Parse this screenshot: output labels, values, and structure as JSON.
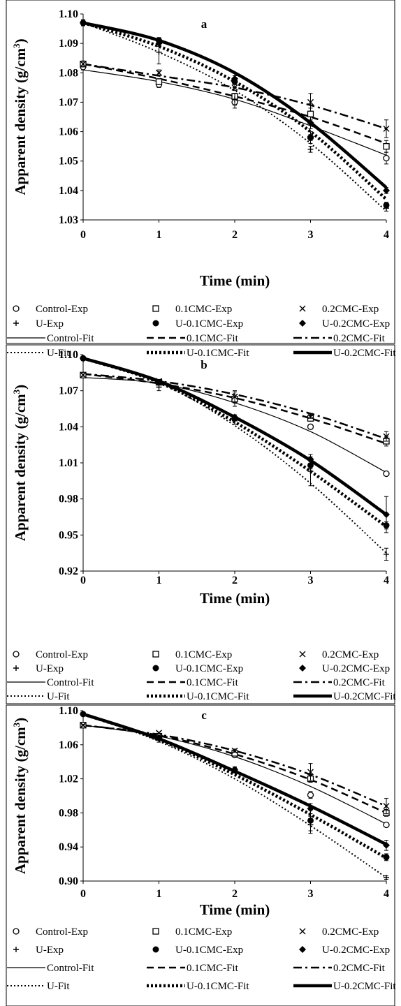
{
  "chart_data": [
    {
      "type": "line",
      "panel_label": "a",
      "xlabel": "Time (min)",
      "ylabel": "Apparent density (g/cm",
      "ylabel_sup": "3",
      "ylabel_close": ")",
      "xlim": [
        0,
        4
      ],
      "ylim": [
        1.03,
        1.1
      ],
      "x_ticks": [
        0,
        1,
        2,
        3,
        4
      ],
      "y_ticks": [
        1.03,
        1.04,
        1.05,
        1.06,
        1.07,
        1.08,
        1.09,
        1.1
      ],
      "y_tick_labels": [
        "1.03",
        "1.04",
        "1.05",
        "1.06",
        "1.07",
        "1.08",
        "1.09",
        "1.10"
      ],
      "grid": false,
      "legend_position": "bottom",
      "series": [
        {
          "name": "Control-Exp",
          "kind": "exp",
          "marker": "circle-open",
          "x": [
            0,
            1,
            2,
            3,
            4
          ],
          "values": [
            1.082,
            1.076,
            1.07,
            1.058,
            1.051
          ],
          "err": [
            0.001,
            0.001,
            0.002,
            0.002,
            0.002
          ]
        },
        {
          "name": "0.1CMC-Exp",
          "kind": "exp",
          "marker": "square-open",
          "x": [
            0,
            1,
            2,
            3,
            4
          ],
          "values": [
            1.083,
            1.077,
            1.072,
            1.066,
            1.055
          ],
          "err": [
            0.001,
            0.001,
            0.001,
            0.002,
            0.002
          ]
        },
        {
          "name": "0.2CMC-Exp",
          "kind": "exp",
          "marker": "x",
          "x": [
            0,
            1,
            2,
            3,
            4
          ],
          "values": [
            1.083,
            1.08,
            1.075,
            1.07,
            1.061
          ],
          "err": [
            0.001,
            0.001,
            0.001,
            0.003,
            0.003
          ]
        },
        {
          "name": "U-Exp",
          "kind": "exp",
          "marker": "plus",
          "x": [
            0,
            1,
            2,
            3,
            4
          ],
          "values": [
            1.097,
            1.087,
            1.071,
            1.054,
            1.034
          ],
          "err": [
            0.001,
            0.004,
            0.002,
            0.001,
            0.001
          ]
        },
        {
          "name": "U-0.1CMC-Exp",
          "kind": "exp",
          "marker": "circle-filled",
          "x": [
            0,
            1,
            2,
            3,
            4
          ],
          "values": [
            1.097,
            1.091,
            1.077,
            1.058,
            1.035
          ],
          "err": [
            0.001,
            0.001,
            0.002,
            0.001,
            0.001
          ]
        },
        {
          "name": "U-0.2CMC-Exp",
          "kind": "exp",
          "marker": "diamond-filled",
          "x": [
            0,
            1,
            2,
            3,
            4
          ],
          "values": [
            1.097,
            1.09,
            1.078,
            1.063,
            1.04
          ],
          "err": [
            0.001,
            0.001,
            0.002,
            0.002,
            0.001
          ]
        },
        {
          "name": "Control-Fit",
          "kind": "fit",
          "dash": "solid-thin",
          "x": [
            0,
            1,
            2,
            3,
            4
          ],
          "values": [
            1.081,
            1.077,
            1.071,
            1.062,
            1.052
          ]
        },
        {
          "name": "0.1CMC-Fit",
          "kind": "fit",
          "dash": "dashed",
          "x": [
            0,
            1,
            2,
            3,
            4
          ],
          "values": [
            1.083,
            1.078,
            1.072,
            1.065,
            1.056
          ]
        },
        {
          "name": "0.2CMC-Fit",
          "kind": "fit",
          "dash": "dash-dot",
          "x": [
            0,
            1,
            2,
            3,
            4
          ],
          "values": [
            1.083,
            1.079,
            1.075,
            1.069,
            1.061
          ]
        },
        {
          "name": "U-Fit",
          "kind": "fit",
          "dash": "dotted-thin",
          "x": [
            0,
            1,
            2,
            3,
            4
          ],
          "values": [
            1.097,
            1.087,
            1.074,
            1.056,
            1.033
          ]
        },
        {
          "name": "U-0.1CMC-Fit",
          "kind": "fit",
          "dash": "dotted-thick",
          "x": [
            0,
            1,
            2,
            3,
            4
          ],
          "values": [
            1.097,
            1.089,
            1.077,
            1.06,
            1.037
          ]
        },
        {
          "name": "U-0.2CMC-Fit",
          "kind": "fit",
          "dash": "solid-thick",
          "x": [
            0,
            1,
            2,
            3,
            4
          ],
          "values": [
            1.097,
            1.091,
            1.08,
            1.063,
            1.041
          ]
        }
      ]
    },
    {
      "type": "line",
      "panel_label": "b",
      "xlabel": "Time (min)",
      "ylabel": "Apparent density (g/cm",
      "ylabel_sup": "3",
      "ylabel_close": ")",
      "xlim": [
        0,
        4
      ],
      "ylim": [
        0.92,
        1.1
      ],
      "x_ticks": [
        0,
        1,
        2,
        3,
        4
      ],
      "y_ticks": [
        0.92,
        0.95,
        0.98,
        1.01,
        1.04,
        1.07,
        1.1
      ],
      "y_tick_labels": [
        "0.92",
        "0.95",
        "0.98",
        "1.01",
        "1.04",
        "1.07",
        "1.10"
      ],
      "grid": false,
      "legend_position": "bottom",
      "series": [
        {
          "name": "Control-Exp",
          "kind": "exp",
          "marker": "circle-open",
          "x": [
            0,
            1,
            2,
            3,
            4
          ],
          "values": [
            1.083,
            1.077,
            1.062,
            1.04,
            1.001
          ],
          "err": [
            0.001,
            0.001,
            0.002,
            0.002,
            0.001
          ]
        },
        {
          "name": "0.1CMC-Exp",
          "kind": "exp",
          "marker": "square-open",
          "x": [
            0,
            1,
            2,
            3,
            4
          ],
          "values": [
            1.083,
            1.077,
            1.063,
            1.047,
            1.028
          ],
          "err": [
            0.002,
            0.001,
            0.006,
            0.002,
            0.004
          ]
        },
        {
          "name": "0.2CMC-Exp",
          "kind": "exp",
          "marker": "x",
          "x": [
            0,
            1,
            2,
            3,
            4
          ],
          "values": [
            1.083,
            1.078,
            1.065,
            1.049,
            1.032
          ],
          "err": [
            0.001,
            0.001,
            0.005,
            0.002,
            0.004
          ]
        },
        {
          "name": "U-Exp",
          "kind": "exp",
          "marker": "plus",
          "x": [
            0,
            1,
            2,
            3,
            4
          ],
          "values": [
            1.096,
            1.073,
            1.045,
            1.003,
            0.934
          ],
          "err": [
            0.001,
            0.003,
            0.003,
            0.012,
            0.005
          ]
        },
        {
          "name": "U-0.1CMC-Exp",
          "kind": "exp",
          "marker": "circle-filled",
          "x": [
            0,
            1,
            2,
            3,
            4
          ],
          "values": [
            1.097,
            1.077,
            1.047,
            1.008,
            0.958
          ],
          "err": [
            0.001,
            0.001,
            0.002,
            0.003,
            0.003
          ]
        },
        {
          "name": "U-0.2CMC-Exp",
          "kind": "exp",
          "marker": "diamond-filled",
          "x": [
            0,
            1,
            2,
            3,
            4
          ],
          "values": [
            1.097,
            1.077,
            1.048,
            1.013,
            0.967
          ],
          "err": [
            0.001,
            0.001,
            0.002,
            0.004,
            0.015
          ]
        },
        {
          "name": "Control-Fit",
          "kind": "fit",
          "dash": "solid-thin",
          "x": [
            0,
            1,
            2,
            3,
            4
          ],
          "values": [
            1.081,
            1.076,
            1.06,
            1.036,
            1.002
          ]
        },
        {
          "name": "0.1CMC-Fit",
          "kind": "fit",
          "dash": "dashed",
          "x": [
            0,
            1,
            2,
            3,
            4
          ],
          "values": [
            1.084,
            1.076,
            1.064,
            1.047,
            1.026
          ]
        },
        {
          "name": "0.2CMC-Fit",
          "kind": "fit",
          "dash": "dash-dot",
          "x": [
            0,
            1,
            2,
            3,
            4
          ],
          "values": [
            1.084,
            1.078,
            1.067,
            1.051,
            1.03
          ]
        },
        {
          "name": "U-Fit",
          "kind": "fit",
          "dash": "dotted-thin",
          "x": [
            0,
            1,
            2,
            3,
            4
          ],
          "values": [
            1.097,
            1.077,
            1.041,
            0.993,
            0.935
          ]
        },
        {
          "name": "U-0.1CMC-Fit",
          "kind": "fit",
          "dash": "dotted-thick",
          "x": [
            0,
            1,
            2,
            3,
            4
          ],
          "values": [
            1.097,
            1.077,
            1.044,
            1.003,
            0.957
          ]
        },
        {
          "name": "U-0.2CMC-Fit",
          "kind": "fit",
          "dash": "solid-thick",
          "x": [
            0,
            1,
            2,
            3,
            4
          ],
          "values": [
            1.097,
            1.078,
            1.048,
            1.012,
            0.967
          ]
        }
      ]
    },
    {
      "type": "line",
      "panel_label": "c",
      "xlabel": "Time (min)",
      "ylabel": "Apparent density (g/cm",
      "ylabel_sup": "3",
      "ylabel_close": ")",
      "xlim": [
        0,
        4
      ],
      "ylim": [
        0.9,
        1.1
      ],
      "x_ticks": [
        0,
        1,
        2,
        3,
        4
      ],
      "y_ticks": [
        0.9,
        0.94,
        0.98,
        1.02,
        1.06,
        1.1
      ],
      "y_tick_labels": [
        "0.90",
        "0.94",
        "0.98",
        "1.02",
        "1.06",
        "1.10"
      ],
      "grid": false,
      "legend_position": "bottom",
      "series": [
        {
          "name": "Control-Exp",
          "kind": "exp",
          "marker": "circle-open",
          "x": [
            0,
            1,
            2,
            3,
            4
          ],
          "values": [
            1.083,
            1.07,
            1.048,
            1.001,
            0.966
          ],
          "err": [
            0.001,
            0.001,
            0.002,
            0.004,
            0.002
          ]
        },
        {
          "name": "0.1CMC-Exp",
          "kind": "exp",
          "marker": "square-open",
          "x": [
            0,
            1,
            2,
            3,
            4
          ],
          "values": [
            1.083,
            1.07,
            1.05,
            1.02,
            0.98
          ],
          "err": [
            0.001,
            0.001,
            0.002,
            0.004,
            0.004
          ]
        },
        {
          "name": "0.2CMC-Exp",
          "kind": "exp",
          "marker": "x",
          "x": [
            0,
            1,
            2,
            3,
            4
          ],
          "values": [
            1.083,
            1.074,
            1.053,
            1.028,
            0.988
          ],
          "err": [
            0.001,
            0.001,
            0.002,
            0.01,
            0.009
          ]
        },
        {
          "name": "U-Exp",
          "kind": "exp",
          "marker": "plus",
          "x": [
            0,
            1,
            2,
            3,
            4
          ],
          "values": [
            1.096,
            1.066,
            1.03,
            0.966,
            0.904
          ],
          "err": [
            0.001,
            0.003,
            0.003,
            0.01,
            0.002
          ]
        },
        {
          "name": "U-0.1CMC-Exp",
          "kind": "exp",
          "marker": "circle-filled",
          "x": [
            0,
            1,
            2,
            3,
            4
          ],
          "values": [
            1.096,
            1.068,
            1.03,
            0.971,
            0.928
          ],
          "err": [
            0.001,
            0.002,
            0.003,
            0.012,
            0.004
          ]
        },
        {
          "name": "U-0.2CMC-Exp",
          "kind": "exp",
          "marker": "diamond-filled",
          "x": [
            0,
            1,
            2,
            3,
            4
          ],
          "values": [
            1.096,
            1.068,
            1.031,
            0.985,
            0.942
          ],
          "err": [
            0.001,
            0.002,
            0.003,
            0.006,
            0.006
          ]
        },
        {
          "name": "Control-Fit",
          "kind": "fit",
          "dash": "solid-thin",
          "x": [
            0,
            1,
            2,
            3,
            4
          ],
          "values": [
            1.083,
            1.07,
            1.046,
            1.011,
            0.967
          ]
        },
        {
          "name": "0.1CMC-Fit",
          "kind": "fit",
          "dash": "dashed",
          "x": [
            0,
            1,
            2,
            3,
            4
          ],
          "values": [
            1.083,
            1.071,
            1.049,
            1.019,
            0.98
          ]
        },
        {
          "name": "0.2CMC-Fit",
          "kind": "fit",
          "dash": "dash-dot",
          "x": [
            0,
            1,
            2,
            3,
            4
          ],
          "values": [
            1.083,
            1.072,
            1.053,
            1.025,
            0.988
          ]
        },
        {
          "name": "U-Fit",
          "kind": "fit",
          "dash": "dotted-thin",
          "x": [
            0,
            1,
            2,
            3,
            4
          ],
          "values": [
            1.096,
            1.064,
            1.02,
            0.965,
            0.904
          ]
        },
        {
          "name": "U-0.1CMC-Fit",
          "kind": "fit",
          "dash": "dotted-thick",
          "x": [
            0,
            1,
            2,
            3,
            4
          ],
          "values": [
            1.096,
            1.066,
            1.025,
            0.978,
            0.927
          ]
        },
        {
          "name": "U-0.2CMC-Fit",
          "kind": "fit",
          "dash": "solid-thick",
          "x": [
            0,
            1,
            2,
            3,
            4
          ],
          "values": [
            1.096,
            1.067,
            1.029,
            0.988,
            0.943
          ]
        }
      ]
    }
  ],
  "colors": {
    "ink": "#000000",
    "background": "#ffffff"
  }
}
